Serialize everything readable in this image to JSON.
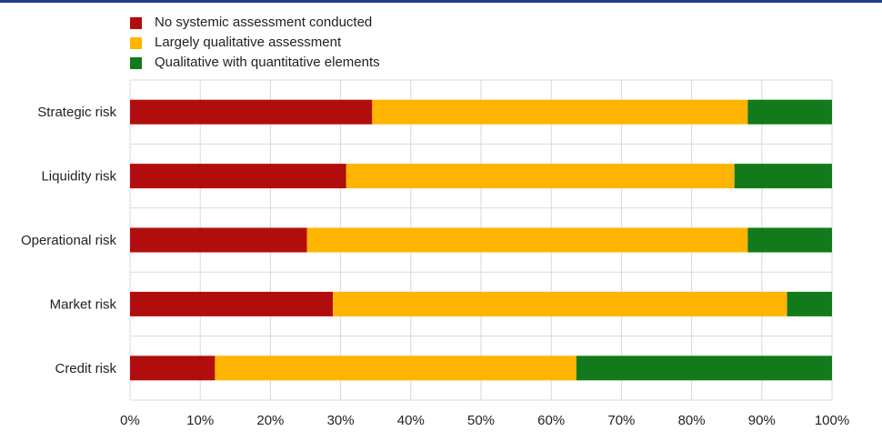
{
  "chart_data": {
    "type": "bar",
    "orientation": "horizontal",
    "stacked": true,
    "categories": [
      "Strategic risk",
      "Liquidity risk",
      "Operational risk",
      "Market risk",
      "Credit risk"
    ],
    "series": [
      {
        "name": "No systemic assessment conducted",
        "color": "#b20d0d",
        "values": [
          34.5,
          30.8,
          25.2,
          28.9,
          12.1
        ]
      },
      {
        "name": "Largely qualitative assessment",
        "color": "#ffb400",
        "values": [
          53.5,
          55.3,
          62.8,
          64.7,
          51.5
        ]
      },
      {
        "name": "Qualitative with quantitative elements",
        "color": "#127a1a",
        "values": [
          12.0,
          13.9,
          12.0,
          6.4,
          36.4
        ]
      }
    ],
    "x_ticks": [
      "0%",
      "10%",
      "20%",
      "30%",
      "40%",
      "50%",
      "60%",
      "70%",
      "80%",
      "90%",
      "100%"
    ],
    "xlim": [
      0,
      100
    ],
    "grid": true,
    "legend_position": "top-left",
    "title": "",
    "xlabel": "",
    "ylabel": ""
  },
  "colors": {
    "rule": "#1f3f8c",
    "grid": "#d9d9d9"
  }
}
